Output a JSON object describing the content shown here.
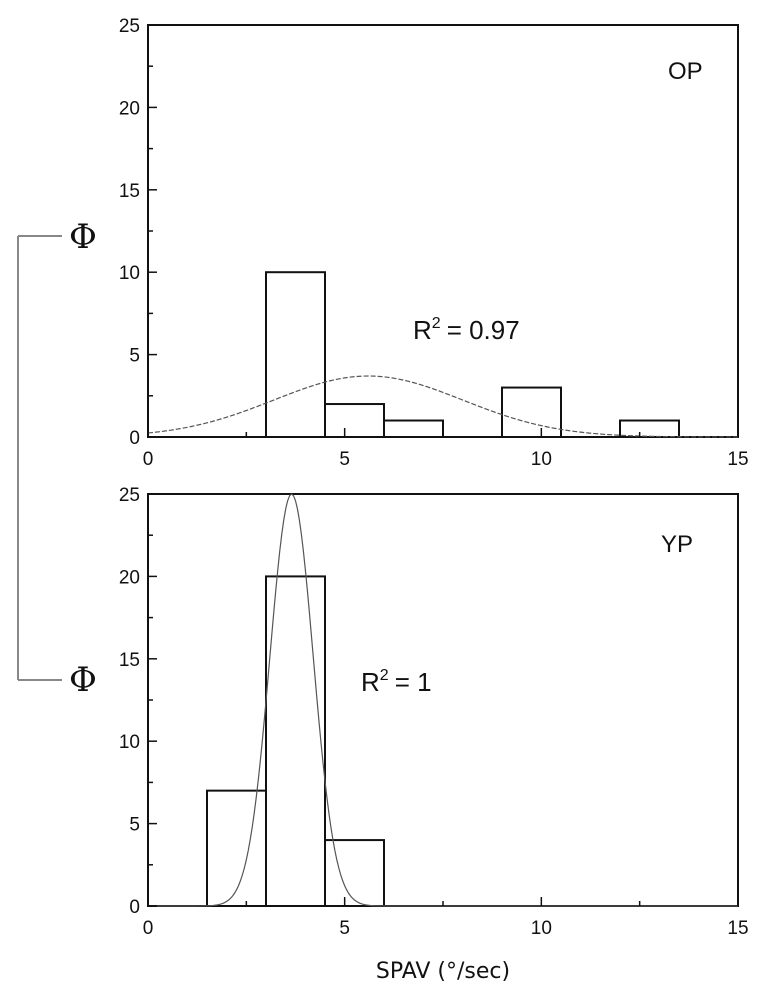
{
  "chart_data": [
    {
      "type": "bar",
      "panel": "OP",
      "histogram_bins": [
        {
          "x0": 3.0,
          "x1": 4.5,
          "value": 10
        },
        {
          "x0": 4.5,
          "x1": 6.0,
          "value": 2
        },
        {
          "x0": 6.0,
          "x1": 7.5,
          "value": 1
        },
        {
          "x0": 9.0,
          "x1": 10.5,
          "value": 3
        },
        {
          "x0": 12.0,
          "x1": 13.5,
          "value": 1
        }
      ],
      "fit_curve": {
        "type": "gaussian",
        "peak": 3.7,
        "center": 5.6,
        "sigma": 2.4
      },
      "r2_label": "R",
      "r2_sup": "2",
      "r2_value": "= 0.97",
      "xlim": [
        0,
        15
      ],
      "ylim": [
        0,
        25
      ],
      "x_ticks": [
        "0",
        "5",
        "10",
        "15"
      ],
      "y_ticks": [
        "0",
        "5",
        "10",
        "15",
        "20",
        "25"
      ],
      "grid": false,
      "title": "",
      "xlabel": "",
      "ylabel": ""
    },
    {
      "type": "bar",
      "panel": "YP",
      "histogram_bins": [
        {
          "x0": 1.5,
          "x1": 3.0,
          "value": 7
        },
        {
          "x0": 3.0,
          "x1": 4.5,
          "value": 20
        },
        {
          "x0": 4.5,
          "x1": 6.0,
          "value": 4
        }
      ],
      "fit_curve": {
        "type": "gaussian",
        "peak": 25,
        "center": 3.65,
        "sigma": 0.55
      },
      "r2_label": "R",
      "r2_sup": "2",
      "r2_value": "= 1",
      "xlim": [
        0,
        15
      ],
      "ylim": [
        0,
        25
      ],
      "x_ticks": [
        "0",
        "5",
        "10",
        "15"
      ],
      "y_ticks": [
        "0",
        "5",
        "10",
        "15",
        "20",
        "25"
      ],
      "grid": false,
      "title": "",
      "xlabel": "SPAV (°/sec)",
      "ylabel": ""
    }
  ],
  "left_bracket": {
    "top_symbol": "Φ",
    "bottom_symbol": "Φ"
  }
}
